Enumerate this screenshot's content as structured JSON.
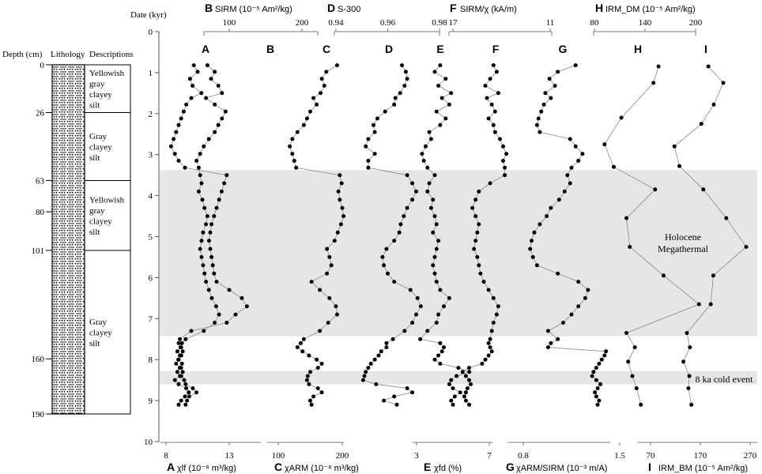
{
  "chart_data": {
    "type": "scatter",
    "date_axis": {
      "label": "Date (kyr)",
      "min": 0,
      "max": 10,
      "ticks": [
        "0",
        "1",
        "2",
        "3",
        "4",
        "5",
        "6",
        "7",
        "8",
        "9",
        "10"
      ]
    },
    "depth_axis": {
      "label": "Depth (cm)",
      "ticks": [
        "0",
        "26",
        "63",
        "80",
        "101",
        "160",
        "190"
      ]
    },
    "lithology": {
      "header_lithology": "Lithology",
      "header_descriptions": "Descriptions",
      "units": [
        {
          "from": 0,
          "to": 26,
          "lines": [
            "Yellowish",
            "gray",
            "clayey",
            "silt"
          ]
        },
        {
          "from": 26,
          "to": 63,
          "lines": [
            "Gray",
            "clayey",
            "silt"
          ]
        },
        {
          "from": 63,
          "to": 101,
          "lines": [
            "Yellowish",
            "gray",
            "clayey",
            "silt"
          ]
        },
        {
          "from": 101,
          "to": 190,
          "lines": [
            "Gray",
            "clayey",
            "silt"
          ]
        }
      ]
    },
    "bands": [
      {
        "from": 3.38,
        "to": 7.43,
        "label": "Holocene Megathermal"
      },
      {
        "from": 8.28,
        "to": 8.6,
        "label": "8 ka cold event"
      }
    ],
    "axes": {
      "top": [
        {
          "letter": "B",
          "label": "SIRM (10⁻⁵ Am²/kg)",
          "ticks": [
            {
              "v": 100,
              "t": "100"
            },
            {
              "v": 200,
              "t": "200"
            }
          ]
        },
        {
          "letter": "D",
          "label": "S-300",
          "ticks": [
            {
              "v": 0.94,
              "t": "0.94"
            },
            {
              "v": 0.96,
              "t": "0.96"
            },
            {
              "v": 0.98,
              "t": "0.98"
            }
          ]
        },
        {
          "letter": "F",
          "label": "SIRM/χ (kA/m)",
          "ticks": [
            {
              "v": 17,
              "t": "17"
            },
            {
              "v": 11,
              "t": "11"
            }
          ]
        },
        {
          "letter": "H",
          "label": "IRM_DM (10⁻⁵ Am²/kg)",
          "ticks": [
            {
              "v": 80,
              "t": "80"
            },
            {
              "v": 140,
              "t": "140"
            },
            {
              "v": 200,
              "t": "200"
            }
          ]
        }
      ],
      "bottom": [
        {
          "letter": "A",
          "label": "χlf (10⁻⁸ m³/kg)",
          "ticks": [
            {
              "v": 8,
              "t": "8"
            },
            {
              "v": 13,
              "t": "13"
            }
          ]
        },
        {
          "letter": "C",
          "label": "χARM (10⁻⁸ m³/kg)",
          "ticks": [
            {
              "v": 100,
              "t": "100"
            },
            {
              "v": 200,
              "t": "200"
            }
          ]
        },
        {
          "letter": "E",
          "label": "χfd (%)",
          "ticks": [
            {
              "v": 3,
              "t": "3"
            },
            {
              "v": 7,
              "t": "7"
            }
          ]
        },
        {
          "letter": "G",
          "label": "χARM/SIRM (10⁻³ m/A)",
          "ticks": [
            {
              "v": 0.8,
              "t": "0.8"
            },
            {
              "v": 1.5,
              "t": "1.5"
            }
          ]
        },
        {
          "letter": "I",
          "label": "IRM_BM (10⁻⁵ Am²/kg)",
          "ticks": [
            {
              "v": 70,
              "t": "70"
            },
            {
              "v": 170,
              "t": "170"
            },
            {
              "v": 270,
              "t": "270"
            }
          ]
        }
      ]
    },
    "series": [
      {
        "name": "A",
        "dates": [
          0.82,
          0.98,
          1.15,
          1.32,
          1.5,
          1.62,
          1.78,
          1.95,
          2.12,
          2.28,
          2.45,
          2.62,
          2.8,
          2.98,
          3.15,
          3.32,
          3.5,
          3.7,
          3.9,
          4.1,
          4.3,
          4.5,
          4.7,
          4.9,
          5.1,
          5.3,
          5.5,
          5.7,
          5.9,
          6.1,
          6.3,
          6.5,
          6.7,
          6.9,
          7.1,
          7.3,
          7.5,
          7.6,
          7.7,
          7.8,
          7.9,
          8.0,
          8.1,
          8.2,
          8.3,
          8.4,
          8.5,
          8.6,
          8.7,
          8.8,
          8.9,
          9.0,
          9.1
        ],
        "values": [
          10.2,
          10.5,
          9.9,
          10.1,
          10.8,
          10.0,
          9.6,
          9.4,
          9.2,
          9.0,
          8.8,
          8.6,
          8.4,
          8.7,
          9.0,
          9.5,
          12.8,
          12.6,
          12.4,
          12.2,
          12.0,
          11.8,
          11.6,
          11.5,
          11.4,
          11.5,
          11.6,
          11.7,
          11.8,
          12.0,
          13.0,
          14.0,
          14.4,
          13.5,
          12.8,
          10.0,
          9.1,
          9.0,
          9.2,
          8.9,
          9.1,
          9.0,
          8.8,
          9.2,
          8.9,
          9.1,
          8.7,
          9.0,
          9.6,
          9.8,
          9.5,
          9.2,
          9.0
        ]
      },
      {
        "name": "B",
        "dates": [
          0.82,
          0.98,
          1.15,
          1.32,
          1.5,
          1.62,
          1.78,
          1.95,
          2.12,
          2.28,
          2.45,
          2.62,
          2.8,
          2.98,
          3.15,
          3.32,
          3.5,
          3.7,
          3.9,
          4.1,
          4.3,
          4.5,
          4.7,
          4.9,
          5.1,
          5.3,
          5.5,
          5.7,
          5.9,
          6.1,
          6.3,
          6.5,
          6.7,
          6.9,
          7.1,
          7.3,
          7.5,
          7.6,
          7.7,
          7.8,
          7.9,
          8.0,
          8.1,
          8.2,
          8.3,
          8.4,
          8.5,
          8.6,
          8.7,
          8.8,
          8.9,
          9.0,
          9.1
        ],
        "values": [
          70,
          80,
          75,
          85,
          90,
          68,
          80,
          95,
          90,
          85,
          80,
          72,
          65,
          60,
          55,
          58,
          60,
          62,
          58,
          63,
          66,
          70,
          68,
          64,
          62,
          60,
          62,
          64,
          66,
          68,
          72,
          76,
          82,
          86,
          80,
          65,
          40,
          35,
          33,
          36,
          34,
          30,
          35,
          32,
          36,
          34,
          38,
          40,
          50,
          55,
          45,
          42,
          40
        ]
      },
      {
        "name": "C",
        "dates": [
          0.82,
          0.98,
          1.15,
          1.32,
          1.5,
          1.62,
          1.78,
          1.95,
          2.12,
          2.28,
          2.45,
          2.62,
          2.8,
          2.98,
          3.15,
          3.32,
          3.5,
          3.7,
          3.9,
          4.1,
          4.3,
          4.5,
          4.7,
          4.9,
          5.1,
          5.3,
          5.5,
          5.7,
          5.9,
          6.1,
          6.3,
          6.5,
          6.7,
          6.9,
          7.1,
          7.3,
          7.5,
          7.6,
          7.7,
          7.8,
          7.9,
          8.0,
          8.1,
          8.2,
          8.3,
          8.4,
          8.5,
          8.6,
          8.7,
          8.8,
          8.9,
          9.0,
          9.1
        ],
        "values": [
          192,
          175,
          168,
          172,
          166,
          155,
          160,
          150,
          145,
          140,
          130,
          122,
          118,
          122,
          125,
          128,
          196,
          199,
          194,
          196,
          200,
          202,
          198,
          193,
          188,
          176,
          180,
          183,
          176,
          152,
          165,
          180,
          190,
          192,
          178,
          165,
          140,
          135,
          130,
          138,
          148,
          160,
          168,
          162,
          150,
          146,
          145,
          148,
          162,
          168,
          155,
          150,
          152
        ]
      },
      {
        "name": "D",
        "dates": [
          0.82,
          0.98,
          1.15,
          1.32,
          1.5,
          1.62,
          1.78,
          1.95,
          2.12,
          2.28,
          2.45,
          2.62,
          2.8,
          2.98,
          3.15,
          3.32,
          3.5,
          3.7,
          3.9,
          4.1,
          4.3,
          4.5,
          4.7,
          4.9,
          5.1,
          5.3,
          5.5,
          5.7,
          5.9,
          6.1,
          6.3,
          6.5,
          6.7,
          6.9,
          7.1,
          7.3,
          7.5,
          7.6,
          7.7,
          7.8,
          7.9,
          8.0,
          8.1,
          8.2,
          8.3,
          8.4,
          8.5,
          8.6,
          8.7,
          8.8,
          8.9,
          9.0,
          9.1
        ],
        "values": [
          0.9655,
          0.967,
          0.9675,
          0.9665,
          0.9648,
          0.963,
          0.9625,
          0.959,
          0.956,
          0.9545,
          0.955,
          0.9525,
          0.9515,
          0.955,
          0.9525,
          0.9525,
          0.9675,
          0.9695,
          0.971,
          0.9695,
          0.9675,
          0.9662,
          0.965,
          0.9645,
          0.9625,
          0.9595,
          0.958,
          0.9585,
          0.96,
          0.9625,
          0.9688,
          0.9715,
          0.9728,
          0.971,
          0.9695,
          0.9665,
          0.962,
          0.9595,
          0.9595,
          0.9575,
          0.9565,
          0.955,
          0.9535,
          0.9525,
          0.9515,
          0.951,
          0.9505,
          0.9555,
          0.9675,
          0.9695,
          0.9625,
          0.9585,
          0.9635
        ]
      },
      {
        "name": "E",
        "dates": [
          0.82,
          0.98,
          1.15,
          1.32,
          1.5,
          1.62,
          1.78,
          1.95,
          2.12,
          2.28,
          2.45,
          2.62,
          2.8,
          2.98,
          3.15,
          3.32,
          3.5,
          3.7,
          3.9,
          4.1,
          4.3,
          4.5,
          4.7,
          4.9,
          5.1,
          5.3,
          5.5,
          5.7,
          5.9,
          6.1,
          6.3,
          6.5,
          6.7,
          6.9,
          7.1,
          7.3,
          7.5,
          7.6,
          7.7,
          7.8,
          7.9,
          8.0,
          8.1,
          8.2,
          8.3,
          8.4,
          8.5,
          8.6,
          8.7,
          8.8,
          8.9,
          9.0,
          9.1
        ],
        "values": [
          4.3,
          4.0,
          4.6,
          4.2,
          4.9,
          4.4,
          4.8,
          4.1,
          4.6,
          4.3,
          3.7,
          3.8,
          3.5,
          3.3,
          3.4,
          3.6,
          4.0,
          3.7,
          3.6,
          3.9,
          3.8,
          4.0,
          4.1,
          3.9,
          4.2,
          4.1,
          4.0,
          3.9,
          4.0,
          4.1,
          4.3,
          4.8,
          4.5,
          4.2,
          4.1,
          3.6,
          3.2,
          4.3,
          4.5,
          4.4,
          4.2,
          4.0,
          4.3,
          5.3,
          5.9,
          5.2,
          4.9,
          4.8,
          5.0,
          5.4,
          5.1,
          4.9,
          5.0
        ]
      },
      {
        "name": "F",
        "dates": [
          0.82,
          0.98,
          1.15,
          1.32,
          1.5,
          1.62,
          1.78,
          1.95,
          2.12,
          2.28,
          2.45,
          2.62,
          2.8,
          2.98,
          3.15,
          3.32,
          3.5,
          3.7,
          3.9,
          4.1,
          4.3,
          4.5,
          4.7,
          4.9,
          5.1,
          5.3,
          5.5,
          5.7,
          5.9,
          6.1,
          6.3,
          6.5,
          6.7,
          6.9,
          7.1,
          7.3,
          7.5,
          7.6,
          7.7,
          7.8,
          7.9,
          8.0,
          8.1,
          8.2,
          8.3,
          8.4,
          8.5,
          8.6,
          8.7,
          8.8,
          8.9,
          9.0,
          9.1
        ],
        "values": [
          14.5,
          14.3,
          14.7,
          15.0,
          14.2,
          14.9,
          14.6,
          14.4,
          14.8,
          14.5,
          14.4,
          14.1,
          13.9,
          13.7,
          13.9,
          13.8,
          13.8,
          14.7,
          15.4,
          15.6,
          15.8,
          15.6,
          15.4,
          15.5,
          15.6,
          15.7,
          15.5,
          15.4,
          15.3,
          15.1,
          14.8,
          14.5,
          14.2,
          14.3,
          14.5,
          14.6,
          14.7,
          14.8,
          14.7,
          14.6,
          14.8,
          15.0,
          15.2,
          16.0,
          16.4,
          16.2,
          16.0,
          15.9,
          16.1,
          16.2,
          16.3,
          16.2,
          16.0
        ]
      },
      {
        "name": "G",
        "dates": [
          0.82,
          0.98,
          1.15,
          1.32,
          1.5,
          1.62,
          1.78,
          1.95,
          2.12,
          2.28,
          2.45,
          2.62,
          2.8,
          2.98,
          3.15,
          3.32,
          3.5,
          3.7,
          3.9,
          4.1,
          4.3,
          4.5,
          4.7,
          4.9,
          5.1,
          5.3,
          5.5,
          5.7,
          5.9,
          6.1,
          6.3,
          6.5,
          6.7,
          6.9,
          7.1,
          7.3,
          7.5,
          7.6,
          7.7,
          7.8,
          7.9,
          8.0,
          8.1,
          8.2,
          8.3,
          8.4,
          8.5,
          8.6,
          8.7,
          8.8,
          8.9,
          9.0,
          9.1
        ],
        "values": [
          1.18,
          1.05,
          0.99,
          1.03,
          0.96,
          1.0,
          0.95,
          0.93,
          0.91,
          0.9,
          0.92,
          1.14,
          1.18,
          1.23,
          1.2,
          1.15,
          1.12,
          1.14,
          1.1,
          1.06,
          1.0,
          0.97,
          0.92,
          0.88,
          0.86,
          0.85,
          0.87,
          0.9,
          1.05,
          1.2,
          1.27,
          1.25,
          1.2,
          1.15,
          1.09,
          0.98,
          1.05,
          1.0,
          0.98,
          1.4,
          1.39,
          1.37,
          1.35,
          1.33,
          1.31,
          1.3,
          1.33,
          1.36,
          1.34,
          1.32,
          1.33,
          1.35,
          1.34
        ]
      },
      {
        "name": "H",
        "dates": [
          0.85,
          1.25,
          2.1,
          2.75,
          3.3,
          3.85,
          4.55,
          5.25,
          5.95,
          6.65,
          7.35,
          7.7,
          8.05,
          8.4,
          8.7,
          9.1
        ],
        "values": [
          156,
          150,
          112,
          92,
          103,
          152,
          118,
          122,
          162,
          204,
          118,
          128,
          120,
          125,
          130,
          135
        ]
      },
      {
        "name": "I",
        "dates": [
          0.85,
          1.25,
          1.78,
          2.25,
          2.8,
          3.28,
          3.85,
          4.55,
          5.25,
          5.95,
          6.65,
          7.35,
          7.7,
          8.05,
          8.4,
          8.7,
          9.1
        ],
        "values": [
          186,
          216,
          197,
          172,
          118,
          128,
          176,
          222,
          262,
          196,
          191,
          143,
          149,
          136,
          148,
          146,
          152
        ]
      }
    ],
    "annotations": [
      "Holocene",
      "Megathermal",
      "8 ka cold event"
    ]
  }
}
